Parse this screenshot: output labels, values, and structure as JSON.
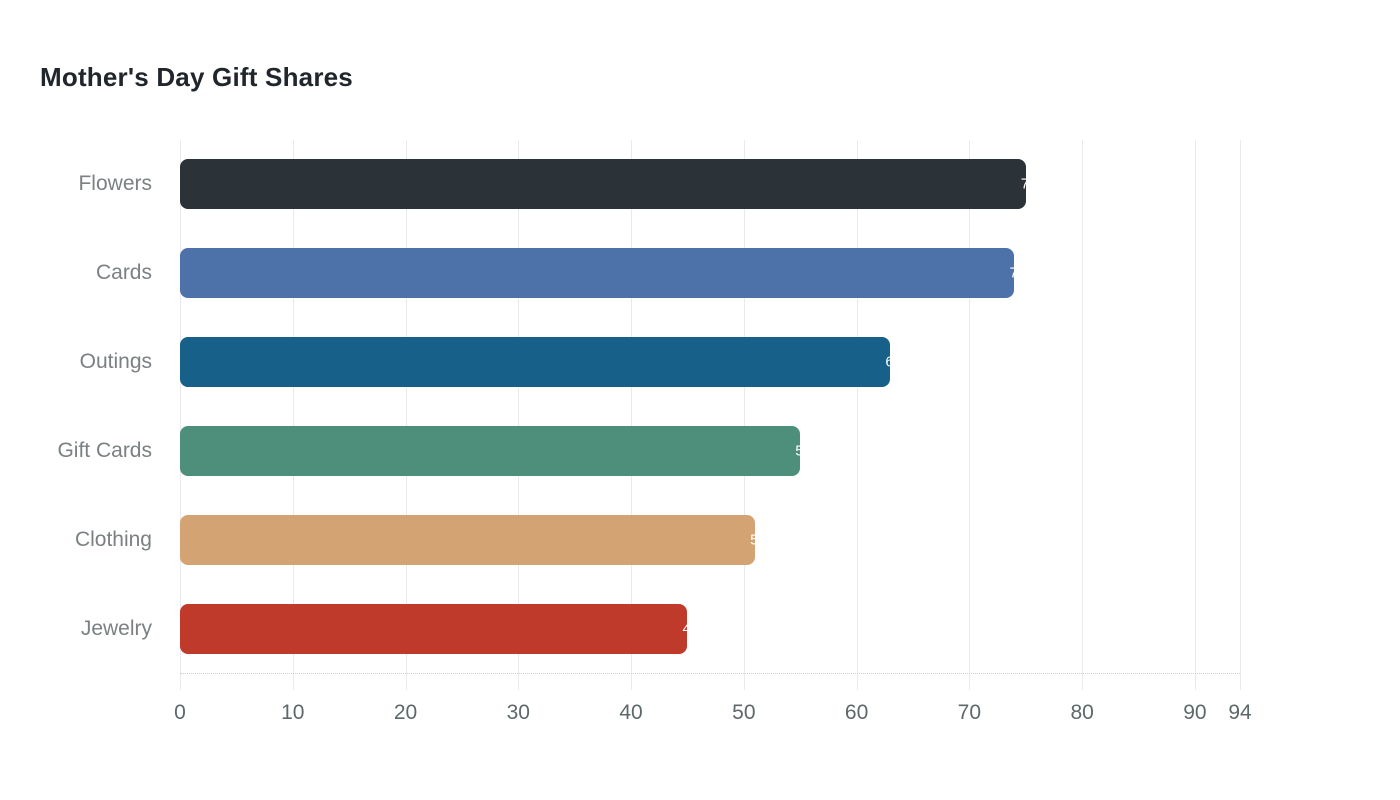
{
  "chart_data": {
    "type": "bar",
    "orientation": "horizontal",
    "title": "Mother's Day Gift Shares",
    "categories": [
      "Flowers",
      "Cards",
      "Outings",
      "Gift Cards",
      "Clothing",
      "Jewelry"
    ],
    "values": [
      75,
      74,
      63,
      55,
      51,
      45
    ],
    "bar_colors": [
      "#2b3338",
      "#4d72a9",
      "#166089",
      "#4d8f7b",
      "#d3a373",
      "#c03a2b"
    ],
    "value_label_color": "#ffffff",
    "xlim": [
      0,
      94
    ],
    "x_ticks": [
      0,
      10,
      20,
      30,
      40,
      50,
      60,
      70,
      80,
      90,
      94
    ],
    "grid": true,
    "legend": "none",
    "background_color": "#ffffff",
    "gridline_color": "#e9e9ee",
    "title_color": "#20262b",
    "axis_label_color": "#5d686b",
    "category_label_color": "#7b8083"
  }
}
